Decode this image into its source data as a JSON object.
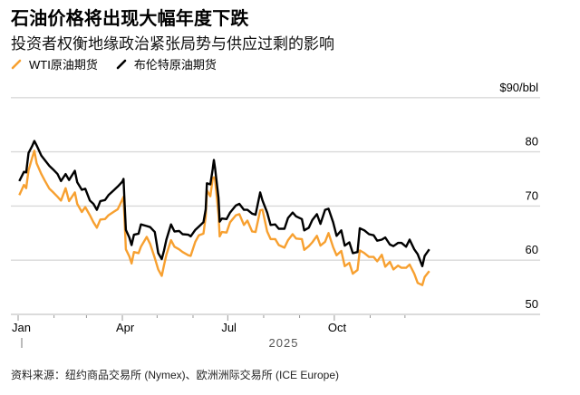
{
  "header": {
    "title": "石油价格将出现大幅年度下跌",
    "subtitle": "投资者权衡地缘政治紧张局势与供应过剩的影响"
  },
  "legend": [
    {
      "label": "WTI原油期货",
      "color": "#f7a030"
    },
    {
      "label": "布伦特原油期货",
      "color": "#000000"
    }
  ],
  "footer": {
    "source": "资料来源：纽约商品交易所 (Nymex)、欧洲洲际交易所 (ICE Europe)"
  },
  "chart_data": {
    "type": "line",
    "title": "石油价格将出现大幅年度下跌",
    "subtitle": "投资者权衡地缘政治紧张局势与供应过剩的影响",
    "xlabel": "2025",
    "ylabel": "$/bbl",
    "ylim": [
      50,
      90
    ],
    "y_ticks": [
      {
        "value": 90,
        "label": "$90/bbl"
      },
      {
        "value": 80,
        "label": "80"
      },
      {
        "value": 70,
        "label": "70"
      },
      {
        "value": 60,
        "label": "60"
      },
      {
        "value": 50,
        "label": "50"
      }
    ],
    "x_ticks": [
      "Jan",
      "Apr",
      "Jul",
      "Oct"
    ],
    "x_year_label": "2025",
    "grid": true,
    "legend_position": "top-left",
    "x": [
      "01-02",
      "01-06",
      "01-08",
      "01-10",
      "01-13",
      "01-15",
      "01-17",
      "01-21",
      "01-24",
      "01-28",
      "01-31",
      "02-04",
      "02-07",
      "02-11",
      "02-14",
      "02-19",
      "02-21",
      "02-25",
      "02-28",
      "03-04",
      "03-07",
      "03-10",
      "03-13",
      "03-17",
      "03-20",
      "03-25",
      "03-28",
      "04-01",
      "04-02",
      "04-03",
      "04-04",
      "04-07",
      "04-09",
      "04-11",
      "04-15",
      "04-17",
      "04-22",
      "04-25",
      "04-29",
      "05-02",
      "05-05",
      "05-07",
      "05-09",
      "05-13",
      "05-16",
      "05-20",
      "05-23",
      "05-28",
      "05-30",
      "06-03",
      "06-06",
      "06-10",
      "06-12",
      "06-13",
      "06-16",
      "06-18",
      "06-19",
      "06-20",
      "06-23",
      "06-24",
      "06-26",
      "06-30",
      "07-03",
      "07-08",
      "07-11",
      "07-15",
      "07-18",
      "07-22",
      "07-25",
      "07-29",
      "07-31",
      "08-04",
      "08-07",
      "08-11",
      "08-14",
      "08-19",
      "08-22",
      "08-26",
      "08-29",
      "09-03",
      "09-05",
      "09-09",
      "09-12",
      "09-16",
      "09-19",
      "09-23",
      "09-26",
      "09-30",
      "10-03",
      "10-07",
      "10-10",
      "10-14",
      "10-17",
      "10-21",
      "10-23",
      "10-27",
      "10-31",
      "11-04",
      "11-07",
      "11-11",
      "11-14",
      "11-18",
      "11-21",
      "11-25",
      "11-28",
      "12-02",
      "12-05",
      "12-09",
      "12-12",
      "12-16",
      "12-18",
      "12-22"
    ],
    "series": [
      {
        "name": "布伦特原油期货",
        "color": "#000000",
        "values": [
          74.6,
          76.3,
          76.2,
          79.8,
          81.0,
          82.0,
          81.2,
          79.3,
          78.5,
          77.4,
          76.8,
          75.9,
          74.6,
          75.9,
          74.8,
          76.5,
          74.4,
          73.0,
          73.2,
          71.0,
          70.4,
          69.3,
          70.9,
          71.1,
          72.0,
          73.0,
          73.6,
          74.5,
          75.0,
          70.1,
          65.6,
          64.2,
          62.8,
          64.7,
          64.9,
          66.6,
          66.3,
          66.1,
          65.2,
          61.3,
          60.2,
          61.8,
          63.8,
          66.6,
          65.3,
          65.4,
          64.8,
          64.7,
          64.4,
          65.6,
          66.2,
          67.0,
          69.4,
          74.2,
          74.0,
          76.8,
          78.5,
          77.0,
          71.5,
          67.1,
          67.7,
          67.6,
          68.8,
          70.1,
          70.4,
          69.3,
          69.3,
          68.6,
          68.4,
          72.5,
          71.0,
          68.8,
          66.5,
          66.6,
          65.8,
          65.8,
          67.8,
          68.8,
          68.1,
          67.6,
          65.5,
          66.0,
          67.4,
          68.5,
          66.7,
          69.3,
          69.5,
          67.0,
          64.5,
          65.5,
          62.7,
          63.3,
          61.3,
          61.5,
          65.9,
          65.5,
          64.8,
          64.6,
          63.6,
          63.8,
          64.2,
          62.9,
          62.6,
          63.2,
          63.2,
          62.5,
          63.8,
          62.0,
          61.1,
          58.9,
          60.8,
          62.0
        ]
      },
      {
        "name": "WTI原油期货",
        "color": "#f7a030",
        "values": [
          72.0,
          73.9,
          73.3,
          76.6,
          78.8,
          80.2,
          77.9,
          75.9,
          74.7,
          73.2,
          72.6,
          71.7,
          71.0,
          73.3,
          70.9,
          72.5,
          70.4,
          68.9,
          69.8,
          68.3,
          67.0,
          66.0,
          67.5,
          67.6,
          68.3,
          69.0,
          69.4,
          71.2,
          71.7,
          66.9,
          62.0,
          60.7,
          59.4,
          61.5,
          61.3,
          62.5,
          64.3,
          63.0,
          60.4,
          58.3,
          57.1,
          59.1,
          61.0,
          63.7,
          62.5,
          62.0,
          61.5,
          60.9,
          60.8,
          63.4,
          64.6,
          64.9,
          68.1,
          72.9,
          71.8,
          75.1,
          75.3,
          74.9,
          68.5,
          64.4,
          65.2,
          65.1,
          67.0,
          68.3,
          68.5,
          66.5,
          67.3,
          65.3,
          65.2,
          69.2,
          69.3,
          65.3,
          63.9,
          63.9,
          62.8,
          62.3,
          63.7,
          64.8,
          64.0,
          63.9,
          61.9,
          62.6,
          63.3,
          64.5,
          62.7,
          63.4,
          65.0,
          62.4,
          60.9,
          61.7,
          58.9,
          59.5,
          57.5,
          58.2,
          61.8,
          61.3,
          60.6,
          60.6,
          59.8,
          61.0,
          58.8,
          59.7,
          58.3,
          59.0,
          58.6,
          58.6,
          59.2,
          57.5,
          55.8,
          55.4,
          56.9,
          58.0
        ]
      }
    ]
  }
}
